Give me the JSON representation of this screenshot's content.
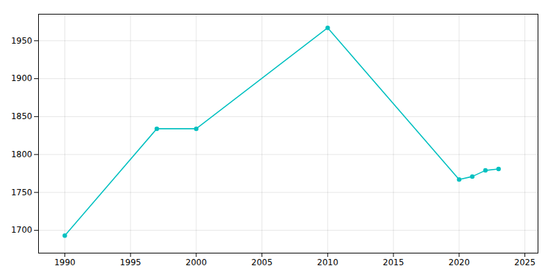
{
  "chart_data": {
    "type": "line",
    "x": [
      1990,
      1997,
      2000,
      2010,
      2020,
      2021,
      2022,
      2023
    ],
    "values": [
      1693,
      1834,
      1834,
      1967,
      1767,
      1771,
      1779,
      1781
    ],
    "color": "#00c0c0",
    "marker": "circle",
    "xlim": [
      1988,
      2026
    ],
    "ylim": [
      1670,
      1985
    ],
    "xticks": [
      1990,
      1995,
      2000,
      2005,
      2010,
      2015,
      2020,
      2025
    ],
    "yticks": [
      1700,
      1750,
      1800,
      1850,
      1900,
      1950
    ],
    "grid": true
  }
}
